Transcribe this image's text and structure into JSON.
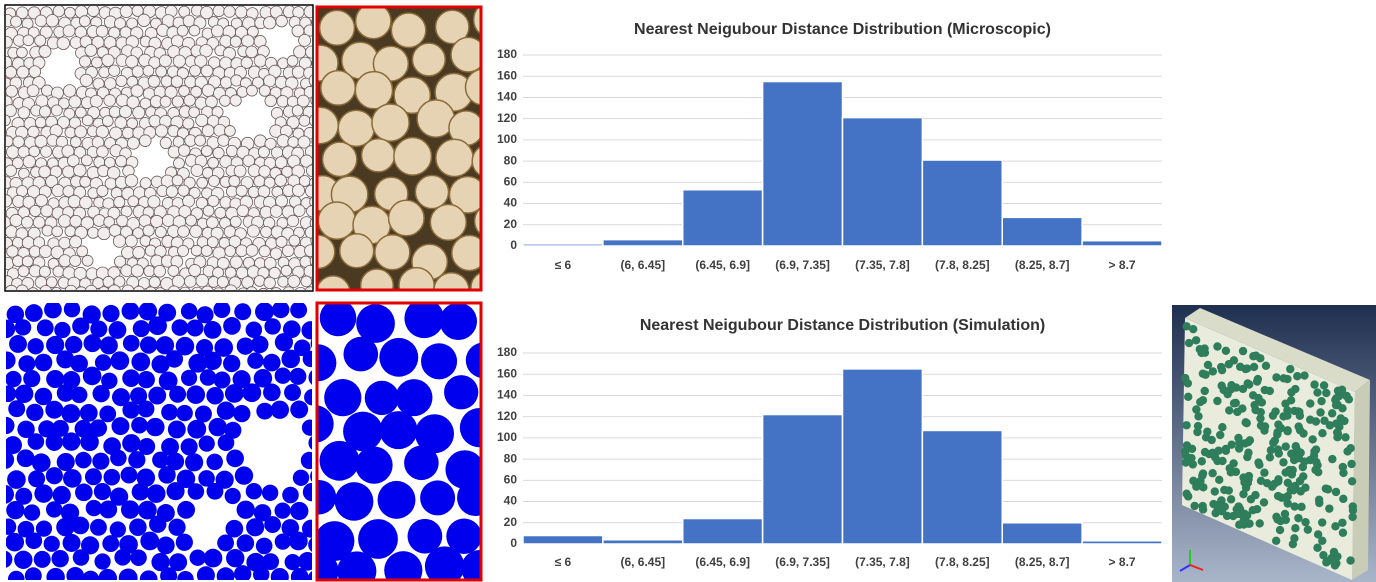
{
  "chart_data": [
    {
      "type": "bar",
      "title": "Nearest Neigubour Distance Distribution (Microscopic)",
      "categories": [
        "≤ 6",
        "(6, 6.45]",
        "(6.45, 6.9]",
        "(6.9, 7.35]",
        "(7.35, 7.8]",
        "(7.8, 8.25]",
        "(8.25, 8.7]",
        "> 8.7"
      ],
      "values": [
        2,
        6,
        53,
        155,
        121,
        81,
        27,
        5
      ],
      "color": "#4472c4",
      "ylim": [
        0,
        180
      ],
      "yticks": [
        0,
        20,
        40,
        60,
        80,
        100,
        120,
        140,
        160,
        180
      ],
      "grid": true
    },
    {
      "type": "bar",
      "title": "Nearest Neigubour Distance Distribution (Simulation)",
      "categories": [
        "≤ 6",
        "(6, 6.45]",
        "(6.45, 6.9]",
        "(6.9, 7.35]",
        "(7.35, 7.8]",
        "(7.8, 8.25]",
        "(8.25, 8.7]",
        "> 8.7"
      ],
      "values": [
        8,
        4,
        24,
        122,
        165,
        107,
        20,
        3
      ],
      "color": "#4472c4",
      "ylim": [
        0,
        180
      ],
      "yticks": [
        0,
        20,
        40,
        60,
        80,
        100,
        120,
        140,
        160,
        180
      ],
      "grid": true
    }
  ]
}
